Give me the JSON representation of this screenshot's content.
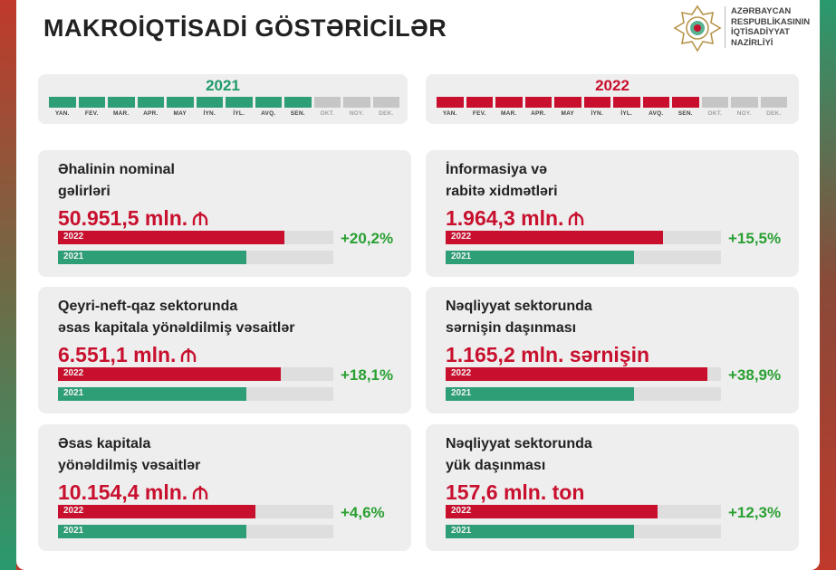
{
  "title": "MAKROİQTİSADİ GÖSTƏRİCİLƏR",
  "ministry": [
    "AZƏRBAYCAN",
    "RESPUBLİKASININ",
    "İQTİSADİYYAT",
    "NAZİRLİYİ"
  ],
  "colors": {
    "green": "#2e9e76",
    "red": "#c8102e",
    "inactive": "#c6c6c6",
    "growth": "#2aa033"
  },
  "timeline": [
    {
      "year": "2021",
      "color": "#2e9e76",
      "year_color": "#1f9a6a",
      "months": [
        "YAN.",
        "FEV.",
        "MAR.",
        "APR.",
        "MAY",
        "İYN.",
        "İYL.",
        "AVQ.",
        "SEN.",
        "OKT.",
        "NOY.",
        "DEK."
      ],
      "active_count": 9
    },
    {
      "year": "2022",
      "color": "#c8102e",
      "year_color": "#c8102e",
      "months": [
        "YAN.",
        "FEV.",
        "MAR.",
        "APR.",
        "MAY",
        "İYN.",
        "İYL.",
        "AVQ.",
        "SEN.",
        "OKT.",
        "NOY.",
        "DEK."
      ],
      "active_count": 9
    }
  ],
  "chart_data": {
    "type": "bar",
    "series_labels": [
      "2022",
      "2021"
    ],
    "indicators": [
      {
        "title_lines": [
          "Əhalinin nominal",
          "gəlirləri"
        ],
        "value_text": "50.951,5 mln.",
        "manat": true,
        "growth": "+20,2%",
        "bar_2022": 0.824,
        "bar_2021": 0.685
      },
      {
        "title_lines": [
          "İnformasiya və",
          "rabitə xidmətləri"
        ],
        "value_text": "1.964,3 mln.",
        "manat": true,
        "growth": "+15,5%",
        "bar_2022": 0.791,
        "bar_2021": 0.685
      },
      {
        "title_lines": [
          "Qeyri-neft-qaz sektorunda",
          "əsas kapitala yönəldilmiş vəsaitlər"
        ],
        "value_text": "6.551,1 mln.",
        "manat": true,
        "growth": "+18,1%",
        "bar_2022": 0.809,
        "bar_2021": 0.685
      },
      {
        "title_lines": [
          "Nəqliyyat sektorunda",
          "sərnişin daşınması"
        ],
        "value_text": "1.165,2 mln. sərnişin",
        "manat": false,
        "growth": "+38,9%",
        "bar_2022": 0.951,
        "bar_2021": 0.685
      },
      {
        "title_lines": [
          "Əsas kapitala",
          "yönəldilmiş vəsaitlər"
        ],
        "value_text": "10.154,4 mln.",
        "manat": true,
        "growth": "+4,6%",
        "bar_2022": 0.717,
        "bar_2021": 0.685
      },
      {
        "title_lines": [
          "Nəqliyyat sektorunda",
          "yük daşınması"
        ],
        "value_text": "157,6 mln. ton",
        "manat": false,
        "growth": "+12,3%",
        "bar_2022": 0.77,
        "bar_2021": 0.685
      }
    ]
  }
}
